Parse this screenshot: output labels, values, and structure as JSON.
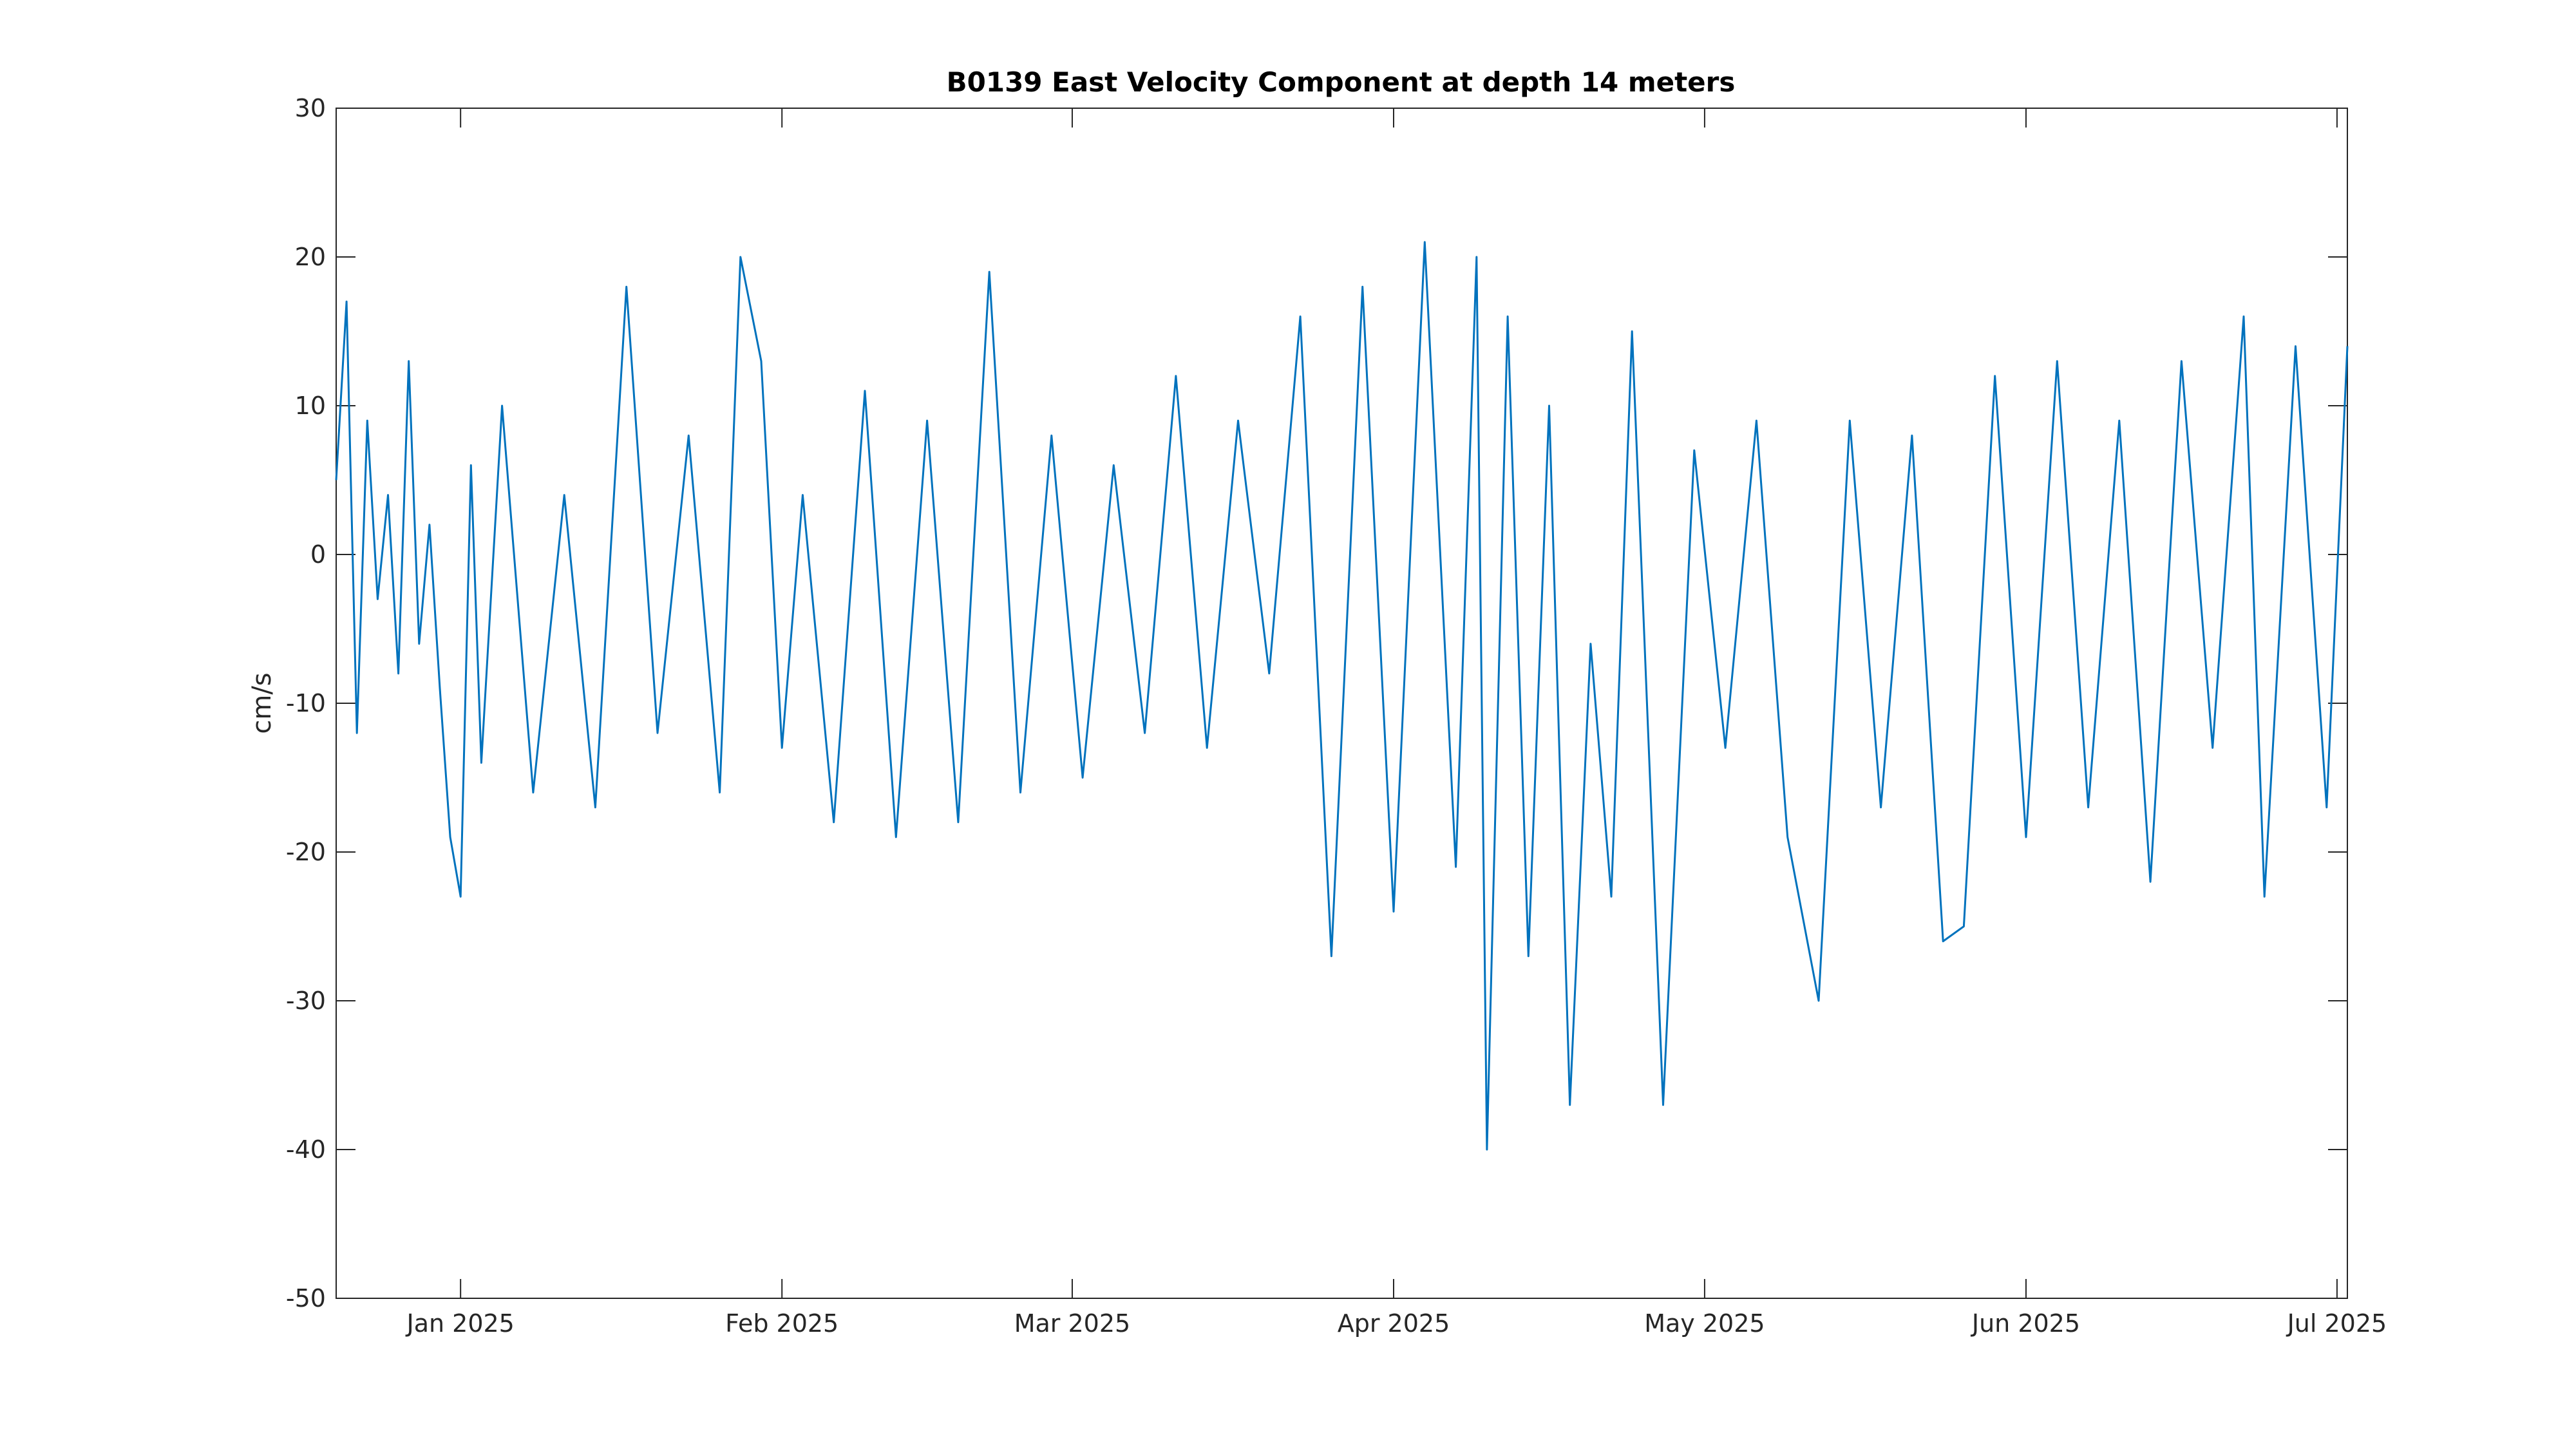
{
  "chart_data": {
    "type": "line",
    "title": "B0139 East Velocity Component at depth 14 meters",
    "xlabel": "",
    "ylabel": "cm/s",
    "ylim": [
      -50,
      30
    ],
    "yticks": [
      "-50",
      "-40",
      "-30",
      "-20",
      "-10",
      "0",
      "10",
      "20",
      "30"
    ],
    "xlim": [
      "2024-12-20",
      "2025-07-02"
    ],
    "xticks": [
      {
        "date": "2025-01-01",
        "label": "Jan 2025"
      },
      {
        "date": "2025-02-01",
        "label": "Feb 2025"
      },
      {
        "date": "2025-03-01",
        "label": "Mar 2025"
      },
      {
        "date": "2025-04-01",
        "label": "Apr 2025"
      },
      {
        "date": "2025-05-01",
        "label": "May 2025"
      },
      {
        "date": "2025-06-01",
        "label": "Jun 2025"
      },
      {
        "date": "2025-07-01",
        "label": "Jul 2025"
      }
    ],
    "grid": false,
    "line_color": "#0072BD",
    "series": [
      {
        "x": [
          "2024-12-20",
          "2024-12-21",
          "2024-12-22",
          "2024-12-23",
          "2024-12-24",
          "2024-12-25",
          "2024-12-26",
          "2024-12-27",
          "2024-12-28",
          "2024-12-29",
          "2024-12-30",
          "2024-12-31",
          "2025-01-01",
          "2025-01-02",
          "2025-01-03",
          "2025-01-05",
          "2025-01-08",
          "2025-01-11",
          "2025-01-14",
          "2025-01-17",
          "2025-01-20",
          "2025-01-23",
          "2025-01-26",
          "2025-01-28",
          "2025-01-30",
          "2025-02-01",
          "2025-02-03",
          "2025-02-06",
          "2025-02-09",
          "2025-02-12",
          "2025-02-15",
          "2025-02-18",
          "2025-02-21",
          "2025-02-24",
          "2025-02-27",
          "2025-03-02",
          "2025-03-05",
          "2025-03-08",
          "2025-03-11",
          "2025-03-14",
          "2025-03-17",
          "2025-03-20",
          "2025-03-23",
          "2025-03-26",
          "2025-03-29",
          "2025-04-01",
          "2025-04-04",
          "2025-04-07",
          "2025-04-09",
          "2025-04-10",
          "2025-04-12",
          "2025-04-14",
          "2025-04-16",
          "2025-04-18",
          "2025-04-20",
          "2025-04-22",
          "2025-04-24",
          "2025-04-27",
          "2025-04-30",
          "2025-05-03",
          "2025-05-06",
          "2025-05-09",
          "2025-05-12",
          "2025-05-15",
          "2025-05-18",
          "2025-05-21",
          "2025-05-24",
          "2025-05-26",
          "2025-05-29",
          "2025-06-01",
          "2025-06-04",
          "2025-06-07",
          "2025-06-10",
          "2025-06-13",
          "2025-06-16",
          "2025-06-19",
          "2025-06-22",
          "2025-06-24",
          "2025-06-27",
          "2025-06-30",
          "2025-07-02"
        ],
        "y": [
          5,
          17,
          -12,
          9,
          -3,
          4,
          -8,
          13,
          -6,
          2,
          -9,
          -19,
          -23,
          6,
          -14,
          10,
          -16,
          4,
          -17,
          18,
          -12,
          8,
          -16,
          20,
          13,
          -13,
          4,
          -18,
          11,
          -19,
          9,
          -18,
          19,
          -16,
          8,
          -15,
          6,
          -12,
          12,
          -13,
          9,
          -8,
          16,
          -27,
          18,
          -24,
          21,
          -21,
          20,
          -40,
          16,
          -27,
          10,
          -37,
          -6,
          -23,
          15,
          -37,
          7,
          -13,
          9,
          -19,
          -30,
          9,
          -17,
          8,
          -26,
          -25,
          12,
          -19,
          13,
          -17,
          9,
          -22,
          13,
          -13,
          16,
          -23,
          14,
          -17,
          14
        ]
      }
    ]
  }
}
